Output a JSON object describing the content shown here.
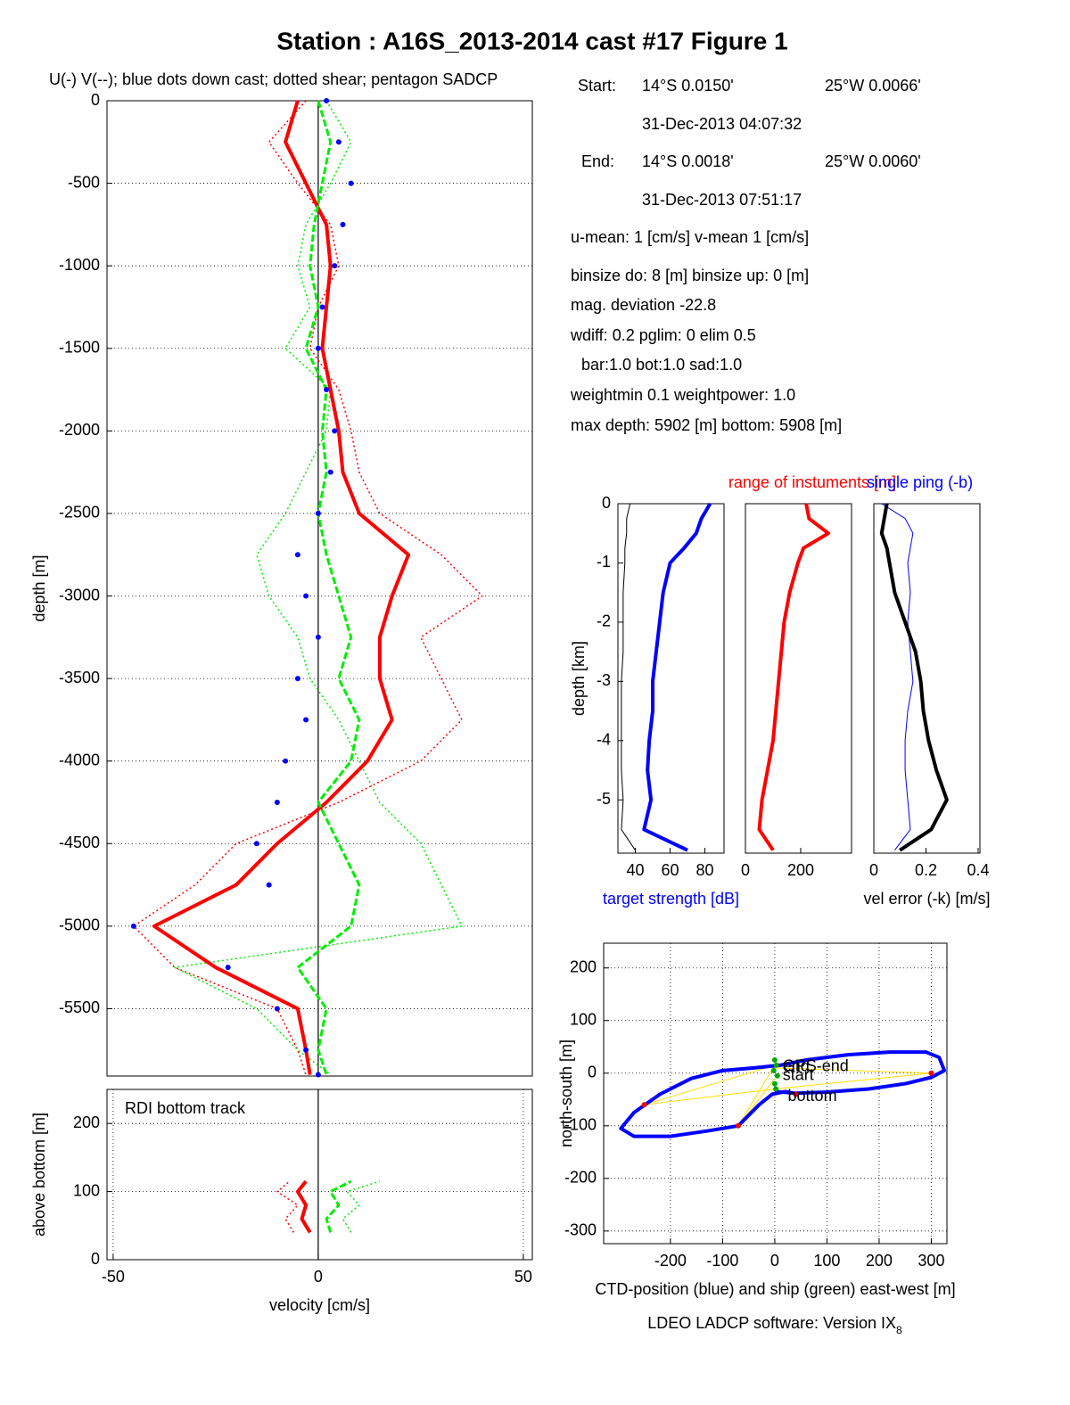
{
  "title": "Station : A16S_2013-2014 cast #17  Figure 1",
  "info": {
    "start_label": "Start:",
    "start_lat": "14°S  0.0150'",
    "start_lon": "25°W  0.0066'",
    "start_time": "31-Dec-2013 04:07:32",
    "end_label": "End:",
    "end_lat": "14°S  0.0018'",
    "end_lon": "25°W  0.0060'",
    "end_time": "31-Dec-2013 07:51:17",
    "lines": [
      "u-mean:   1 [cm/s]    v-mean   1 [cm/s]",
      "binsize do: 8 [m]  binsize up:  0 [m]",
      "mag. deviation -22.8",
      "wdiff: 0.2  pglim: 0  elim 0.5",
      "bar:1.0 bot:1.0 sad:1.0",
      "weightmin 0.1  weightpower: 1.0",
      "max depth: 5902 [m]   bottom: 5908 [m]"
    ]
  },
  "footer": {
    "text": "LDEO LADCP software: Version IX",
    "sub": "8"
  },
  "chart_data": [
    {
      "type": "line",
      "subtitle": "U(-) V(--); blue dots down cast; dotted shear; pentagon SADCP",
      "ylabel": "depth [m]",
      "xlim": [
        -51.5,
        52.2
      ],
      "ylim": [
        -5908,
        0
      ],
      "yticks": [
        0,
        -500,
        -1000,
        -1500,
        -2000,
        -2500,
        -3000,
        -3500,
        -4000,
        -4500,
        -5000,
        -5500
      ],
      "grid": true,
      "zero_line": true,
      "depth": [
        0,
        -250,
        -500,
        -750,
        -1000,
        -1250,
        -1500,
        -1750,
        -2000,
        -2250,
        -2500,
        -2750,
        -3000,
        -3250,
        -3500,
        -3750,
        -4000,
        -4250,
        -4500,
        -4750,
        -5000,
        -5250,
        -5500,
        -5750,
        -5900
      ],
      "series": [
        {
          "color": "#ff0000",
          "style": "dotted",
          "values": [
            -3,
            -12,
            -5,
            3,
            5,
            0,
            -2,
            5,
            8,
            10,
            15,
            30,
            40,
            25,
            30,
            35,
            25,
            5,
            -20,
            -30,
            -45,
            -35,
            -10,
            -5,
            -3
          ]
        },
        {
          "color": "#00ee00",
          "style": "dotted",
          "values": [
            2,
            8,
            3,
            -3,
            -5,
            -2,
            -8,
            3,
            2,
            -3,
            -8,
            -15,
            -12,
            -5,
            -2,
            5,
            10,
            15,
            25,
            30,
            35,
            -35,
            -15,
            -5,
            3
          ]
        },
        {
          "color": "#ff0000",
          "style": "thick",
          "values": [
            -5,
            -8,
            -3,
            2,
            3,
            2,
            1,
            3,
            5,
            6,
            10,
            22,
            18,
            15,
            15,
            18,
            12,
            2,
            -10,
            -20,
            -40,
            -25,
            -5,
            -3,
            -2
          ]
        },
        {
          "color": "#00ee00",
          "style": "dashed",
          "values": [
            0,
            3,
            1,
            -1,
            -2,
            0,
            -3,
            2,
            1,
            2,
            0,
            2,
            5,
            8,
            5,
            10,
            8,
            0,
            5,
            10,
            8,
            -5,
            2,
            0,
            2
          ]
        },
        {
          "color": "#0000ff",
          "style": "dots",
          "values": [
            2,
            5,
            8,
            6,
            4,
            1,
            0,
            2,
            4,
            3,
            0,
            -5,
            -3,
            0,
            -5,
            -3,
            -8,
            -10,
            -15,
            -12,
            -45,
            -22,
            -10,
            -3,
            0
          ]
        }
      ]
    },
    {
      "type": "line",
      "annotation": "RDI bottom track",
      "xlabel": "velocity [cm/s]",
      "ylabel": "above bottom [m]",
      "xlim": [
        -51.5,
        52.2
      ],
      "ylim": [
        0,
        250
      ],
      "yticks": [
        0,
        100,
        200
      ],
      "xticks": [
        -50,
        0,
        50
      ],
      "grid": true,
      "zero_line": true,
      "depth": [
        40,
        60,
        80,
        100,
        115
      ],
      "series": [
        {
          "color": "#ff0000",
          "style": "dotted",
          "values": [
            -6,
            -8,
            -5,
            -10,
            -7
          ]
        },
        {
          "color": "#00ee00",
          "style": "dotted",
          "values": [
            8,
            6,
            10,
            7,
            15
          ]
        },
        {
          "color": "#ff0000",
          "style": "thick",
          "values": [
            -2,
            -4,
            -3,
            -5,
            -3
          ]
        },
        {
          "color": "#00ee00",
          "style": "dashed",
          "values": [
            3,
            2,
            5,
            3,
            8
          ]
        }
      ]
    },
    {
      "type": "line",
      "ylabel": "depth [km]",
      "xlabel": "target strength [dB]",
      "xlabel_color": "#0000ff",
      "xlim": [
        30,
        91
      ],
      "ylim": [
        -5.9,
        0
      ],
      "yticks": [
        0,
        -1,
        -2,
        -3,
        -4,
        -5
      ],
      "xticks": [
        40,
        60,
        80
      ],
      "depth": [
        0,
        -0.25,
        -0.5,
        -0.75,
        -1,
        -1.5,
        -2,
        -2.5,
        -3,
        -3.5,
        -4,
        -4.5,
        -5,
        -5.5,
        -5.85
      ],
      "series": [
        {
          "color": "#000000",
          "style": "solid",
          "values": [
            37,
            35,
            35,
            34,
            34,
            33,
            33,
            33,
            32,
            32,
            32,
            32,
            33,
            32,
            40
          ]
        },
        {
          "color": "#0000ff",
          "style": "thick",
          "values": [
            83,
            78,
            75,
            68,
            60,
            56,
            54,
            52,
            50,
            50,
            48,
            47,
            49,
            45,
            70
          ]
        }
      ]
    },
    {
      "type": "line",
      "title": "range of instuments [m]",
      "title_color": "#ff0000",
      "xlim": [
        0,
        384
      ],
      "ylim": [
        -5.9,
        0
      ],
      "xticks": [
        0,
        200
      ],
      "depth": [
        0,
        -0.25,
        -0.5,
        -0.75,
        -1,
        -1.5,
        -2,
        -2.5,
        -3,
        -3.5,
        -4,
        -4.5,
        -5,
        -5.5,
        -5.85
      ],
      "series": [
        {
          "color": "#ff0000",
          "style": "thick",
          "values": [
            220,
            230,
            300,
            210,
            190,
            160,
            140,
            130,
            120,
            110,
            100,
            80,
            60,
            50,
            100
          ]
        }
      ]
    },
    {
      "type": "line",
      "title": "single ping (-b)",
      "title_color": "#0000ff",
      "xlabel": "vel error (-k) [m/s]",
      "xlim": [
        0,
        0.407
      ],
      "ylim": [
        -5.9,
        0
      ],
      "xticks": [
        0,
        0.2,
        0.4
      ],
      "depth": [
        0,
        -0.25,
        -0.5,
        -0.75,
        -1,
        -1.5,
        -2,
        -2.5,
        -3,
        -3.5,
        -4,
        -4.5,
        -5,
        -5.5,
        -5.85
      ],
      "series": [
        {
          "color": "#0000ff",
          "style": "solid",
          "values": [
            0.03,
            0.12,
            0.15,
            0.14,
            0.13,
            0.14,
            0.13,
            0.14,
            0.15,
            0.13,
            0.12,
            0.12,
            0.13,
            0.14,
            0.08
          ]
        },
        {
          "color": "#000000",
          "style": "thick",
          "values": [
            0.05,
            0.04,
            0.03,
            0.05,
            0.06,
            0.08,
            0.12,
            0.16,
            0.18,
            0.19,
            0.21,
            0.24,
            0.28,
            0.22,
            0.1
          ]
        }
      ]
    },
    {
      "type": "scatter",
      "xlabel": "CTD-position (blue) and ship (green) east-west [m]",
      "ylabel": "north-south [m]",
      "xlim": [
        -328,
        330
      ],
      "ylim": [
        -324,
        247
      ],
      "xticks": [
        -200,
        -100,
        0,
        100,
        200,
        300
      ],
      "yticks": [
        200,
        100,
        0,
        -100,
        -200,
        -300
      ],
      "grid": true,
      "series": [
        {
          "color": "#ffdd00",
          "style": "solid",
          "x": [
            0,
            300,
            0,
            -250,
            0,
            -70,
            0
          ],
          "values": [
            10,
            0,
            -30,
            -60,
            15,
            -100,
            -10
          ]
        },
        {
          "color": "#0000ff",
          "style": "thick",
          "x": [
            0,
            40,
            100,
            180,
            250,
            300,
            325,
            315,
            290,
            220,
            140,
            60,
            10,
            -40,
            -100,
            -160,
            -220,
            -270,
            -295,
            -270,
            -200,
            -130,
            -70,
            -30,
            -5,
            20,
            45
          ],
          "values": [
            -35,
            -38,
            -36,
            -30,
            -20,
            -8,
            5,
            30,
            40,
            40,
            35,
            25,
            15,
            10,
            5,
            -10,
            -40,
            -75,
            -105,
            -120,
            -120,
            -110,
            -100,
            -60,
            -40,
            -35,
            -40
          ]
        },
        {
          "color": "#00aa00",
          "style": "dots",
          "x": [
            0,
            3,
            -2,
            5,
            0,
            2
          ],
          "values": [
            25,
            15,
            5,
            -5,
            -20,
            -30
          ]
        },
        {
          "color": "#ff0000",
          "style": "dots",
          "x": [
            300,
            -250,
            -70,
            40
          ],
          "values": [
            0,
            -60,
            -100,
            -40
          ]
        }
      ],
      "annotations": [
        {
          "text": "GPS-end",
          "x": 15,
          "y": 12
        },
        {
          "text": "end",
          "x": 15,
          "y": 12
        },
        {
          "text": "start",
          "x": 15,
          "y": -5
        },
        {
          "text": "bottom",
          "x": 25,
          "y": -45
        }
      ]
    }
  ]
}
